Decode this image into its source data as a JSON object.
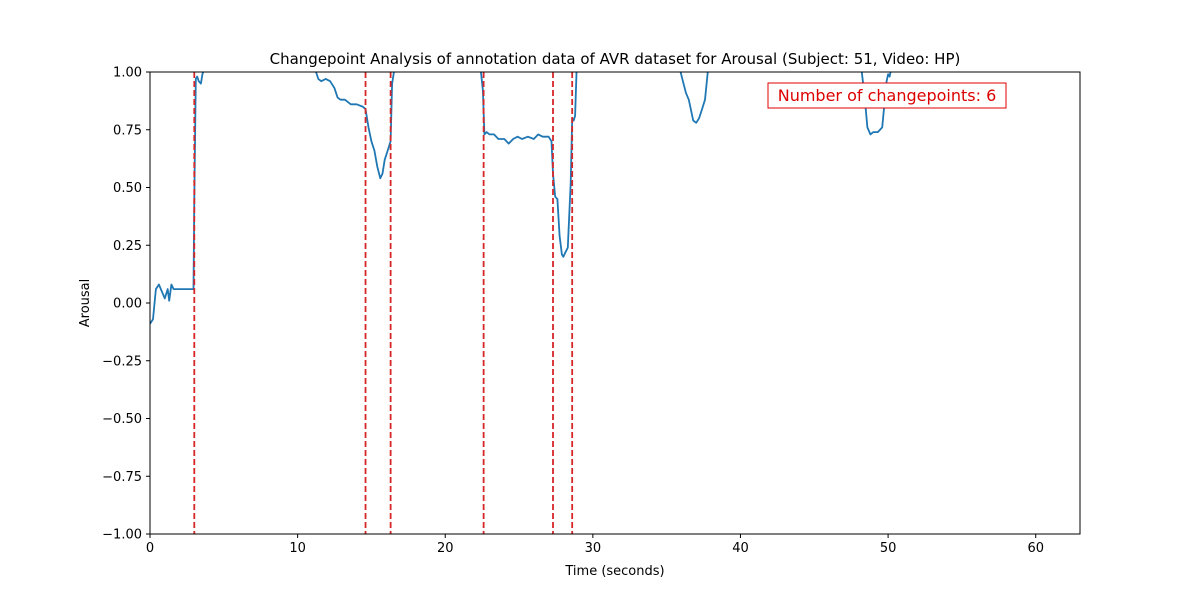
{
  "chart_data": {
    "type": "line",
    "title": "Changepoint Analysis of annotation data of AVR dataset for Arousal (Subject: 51, Video: HP)",
    "xlabel": "Time (seconds)",
    "ylabel": "Arousal",
    "xlim": [
      0,
      63
    ],
    "ylim": [
      -1.0,
      1.0
    ],
    "xticks": [
      0,
      10,
      20,
      30,
      40,
      50,
      60
    ],
    "xtick_labels": [
      "0",
      "10",
      "20",
      "30",
      "40",
      "50",
      "60"
    ],
    "yticks": [
      -1.0,
      -0.75,
      -0.5,
      -0.25,
      0.0,
      0.25,
      0.5,
      0.75,
      1.0
    ],
    "ytick_labels": [
      "−1.00",
      "−0.75",
      "−0.50",
      "−0.25",
      "0.00",
      "0.25",
      "0.50",
      "0.75",
      "1.00"
    ],
    "grid": false,
    "line_color": "#1f77b4",
    "changepoint_color": "#d62728",
    "annotation_color": "#dd0000",
    "annotation": "Number of changepoints: 6",
    "changepoints": [
      3.0,
      14.6,
      16.3,
      22.6,
      27.3,
      28.6
    ],
    "series": [
      {
        "x": [
          0,
          0.2,
          0.4,
          0.6,
          0.8,
          1.0,
          1.2,
          1.3,
          1.45,
          1.6,
          1.8,
          2.2,
          2.6,
          2.95,
          3.0,
          3.1,
          3.2,
          3.3,
          3.45,
          3.55,
          3.65,
          3.8,
          3.95,
          4.1,
          11.2,
          11.4,
          11.6,
          11.9,
          12.2,
          12.5,
          12.7,
          12.9,
          13.2,
          13.6,
          14.0,
          14.4,
          14.6,
          14.8,
          15.0,
          15.2,
          15.4,
          15.6,
          15.75,
          15.9,
          16.1,
          16.3,
          16.4,
          16.55,
          16.7,
          16.8,
          22.4,
          22.55,
          22.65,
          22.8,
          23.0,
          23.3,
          23.6,
          24.0,
          24.3,
          24.6,
          24.9,
          25.2,
          25.6,
          26.0,
          26.3,
          26.6,
          27.0,
          27.2,
          27.3,
          27.45,
          27.6,
          27.75,
          27.9,
          28.0,
          28.15,
          28.3,
          28.5,
          28.6,
          28.7,
          28.8,
          28.9,
          29.05,
          29.2,
          29.4,
          35.9,
          36.1,
          36.3,
          36.5,
          36.8,
          37.0,
          37.2,
          37.4,
          37.6,
          37.8,
          38.0,
          38.2,
          48.2,
          48.4,
          48.6,
          48.8,
          49.0,
          49.3,
          49.6,
          49.9,
          50.0,
          50.1,
          50.2,
          50.3
        ],
        "y": [
          -0.09,
          -0.07,
          0.06,
          0.08,
          0.05,
          0.02,
          0.06,
          0.01,
          0.08,
          0.06,
          0.06,
          0.06,
          0.06,
          0.06,
          0.45,
          0.97,
          0.98,
          0.96,
          0.95,
          0.99,
          1.01,
          null,
          null,
          null,
          1.01,
          0.97,
          0.96,
          0.97,
          0.96,
          0.93,
          0.89,
          0.88,
          0.88,
          0.86,
          0.86,
          0.85,
          0.84,
          0.76,
          0.7,
          0.66,
          0.59,
          0.54,
          0.56,
          0.62,
          0.66,
          0.7,
          0.95,
          1.01,
          null,
          null,
          1.01,
          0.92,
          0.73,
          0.74,
          0.73,
          0.73,
          0.71,
          0.71,
          0.69,
          0.71,
          0.72,
          0.71,
          0.72,
          0.71,
          0.73,
          0.72,
          0.72,
          0.7,
          0.56,
          0.46,
          0.45,
          0.29,
          0.21,
          0.2,
          0.22,
          0.24,
          0.52,
          0.8,
          0.79,
          0.81,
          1.01,
          null,
          null,
          null,
          1.01,
          0.96,
          0.91,
          0.88,
          0.79,
          0.78,
          0.8,
          0.84,
          0.88,
          1.01,
          null,
          null,
          1.01,
          0.9,
          0.76,
          0.73,
          0.74,
          0.74,
          0.76,
          0.96,
          0.99,
          0.98,
          1.01,
          null
        ]
      }
    ]
  }
}
